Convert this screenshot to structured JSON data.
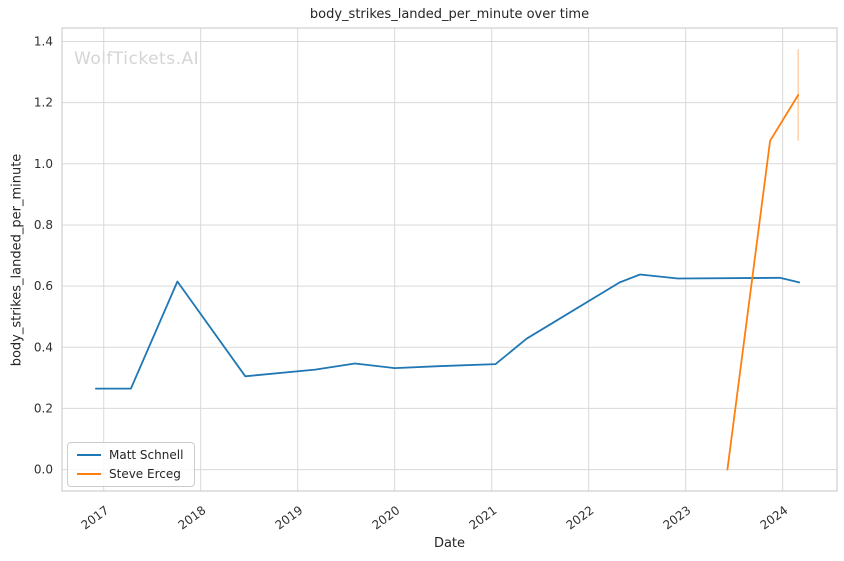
{
  "watermark": "WolfTickets.AI",
  "chart_data": {
    "type": "line",
    "title": "body_strikes_landed_per_minute over time",
    "xlabel": "Date",
    "ylabel": "body_strikes_landed_per_minute",
    "grid": true,
    "legend_position": "lower left",
    "xlim": [
      2016.57,
      2024.56
    ],
    "ylim": [
      -0.07,
      1.444
    ],
    "x_ticks": [
      2017,
      2018,
      2019,
      2020,
      2021,
      2022,
      2023,
      2024
    ],
    "y_ticks": [
      "0.0",
      "0.2",
      "0.4",
      "0.6",
      "0.8",
      "1.0",
      "1.2",
      "1.4"
    ],
    "series": [
      {
        "name": "Matt Schnell",
        "color": "#1f77b4",
        "points": [
          [
            2016.92,
            0.265
          ],
          [
            2017.28,
            0.265
          ],
          [
            2017.76,
            0.615
          ],
          [
            2018.46,
            0.305
          ],
          [
            2019.18,
            0.327
          ],
          [
            2019.59,
            0.347
          ],
          [
            2020.0,
            0.332
          ],
          [
            2020.45,
            0.338
          ],
          [
            2021.04,
            0.345
          ],
          [
            2021.36,
            0.428
          ],
          [
            2022.32,
            0.612
          ],
          [
            2022.53,
            0.638
          ],
          [
            2022.92,
            0.625
          ],
          [
            2023.97,
            0.627
          ],
          [
            2024.17,
            0.612
          ]
        ]
      },
      {
        "name": "Steve Erceg",
        "color": "#ff7f0e",
        "points": [
          [
            2023.43,
            0.0
          ],
          [
            2023.87,
            1.075
          ],
          [
            2024.16,
            1.225
          ]
        ],
        "error_bar": {
          "x": 2024.16,
          "y_low": 1.075,
          "y_high": 1.375
        }
      }
    ],
    "colors": {
      "grid": "#d9d9d9",
      "border": "#cfcfcf",
      "tick_text": "#303030",
      "error_bar": "rgba(255,127,14,0.35)"
    }
  },
  "legend": {
    "items": [
      {
        "label": "Matt Schnell"
      },
      {
        "label": "Steve Erceg"
      }
    ]
  }
}
